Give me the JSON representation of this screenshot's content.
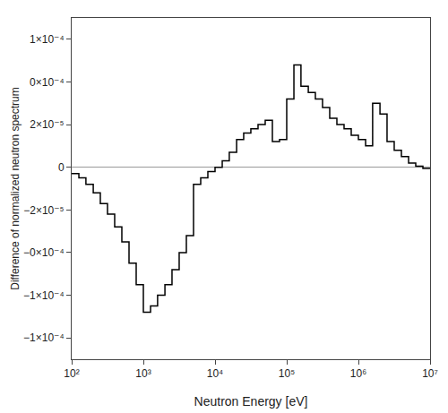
{
  "chart_data": {
    "type": "histogram",
    "xlabel": "Neutron Energy [eV]",
    "ylabel": "Difference of normalized neutron spectrum",
    "log": "x",
    "grid": false,
    "color": "#000000",
    "xlim": [
      100.0,
      10000000.0
    ],
    "ylim": [
      -9e-05,
      7e-05
    ],
    "xticks": [
      {
        "value": 100.0,
        "label": "10²"
      },
      {
        "value": 1000.0,
        "label": "10³"
      },
      {
        "value": 10000.0,
        "label": "10⁴"
      },
      {
        "value": 100000.0,
        "label": "10⁵"
      },
      {
        "value": 1000000.0,
        "label": "10⁶"
      },
      {
        "value": 10000000.0,
        "label": "10⁷"
      }
    ],
    "yticks": [
      {
        "value": -8e-05,
        "label": "−1×10⁻⁴"
      },
      {
        "value": -6e-05,
        "label": "−1×10⁻⁴"
      },
      {
        "value": -4e-05,
        "label": "−0×10⁻⁴"
      },
      {
        "value": -2e-05,
        "label": "−2×10⁻⁵"
      },
      0,
      {
        "value": 2e-05,
        "label": "2×10⁻⁵"
      },
      {
        "value": 4e-05,
        "label": "0×10⁻⁴"
      },
      {
        "value": 6e-05,
        "label": "1×10⁻⁴"
      }
    ],
    "bins": [
      100.0,
      126.0,
      158.0,
      200.0,
      251.0,
      316.0,
      398.0,
      501.0,
      631.0,
      794.0,
      1000.0,
      1260.0,
      1580.0,
      2000.0,
      2510.0,
      3160.0,
      3980.0,
      5010.0,
      6310.0,
      7940.0,
      10000.0,
      12600.0,
      15800.0,
      20000.0,
      25100.0,
      31600.0,
      39800.0,
      50100.0,
      63100.0,
      79400.0,
      100000.0,
      126000.0,
      158000.0,
      200000.0,
      251000.0,
      316000.0,
      398000.0,
      501000.0,
      631000.0,
      794000.0,
      1000000.0,
      1260000.0,
      1580000.0,
      2000000.0,
      2510000.0,
      3160000.0,
      3980000.0,
      5010000.0,
      6310000.0,
      7940000.0,
      10000000.0
    ],
    "values": [
      -3e-06,
      -5e-06,
      -8e-06,
      -1.2e-05,
      -1.7e-05,
      -2.2e-05,
      -2.8e-05,
      -3.5e-05,
      -4.5e-05,
      -5.5e-05,
      -6.8e-05,
      -6.5e-05,
      -6e-05,
      -5.5e-05,
      -4.8e-05,
      -4e-05,
      -3.2e-05,
      -8e-06,
      -5e-06,
      -2e-06,
      0.0,
      3e-06,
      7e-06,
      1.3e-05,
      1.6e-05,
      1.8e-05,
      2e-05,
      2.2e-05,
      1.2e-05,
      1.3e-05,
      3.2e-05,
      4.8e-05,
      3.8e-05,
      3.5e-05,
      3.2e-05,
      2.8e-05,
      2.3e-05,
      2e-05,
      1.8e-05,
      1.5e-05,
      1.3e-05,
      1e-05,
      3e-05,
      2.5e-05,
      1.2e-05,
      8e-06,
      5e-06,
      2e-06,
      5e-07,
      -5e-07
    ]
  }
}
